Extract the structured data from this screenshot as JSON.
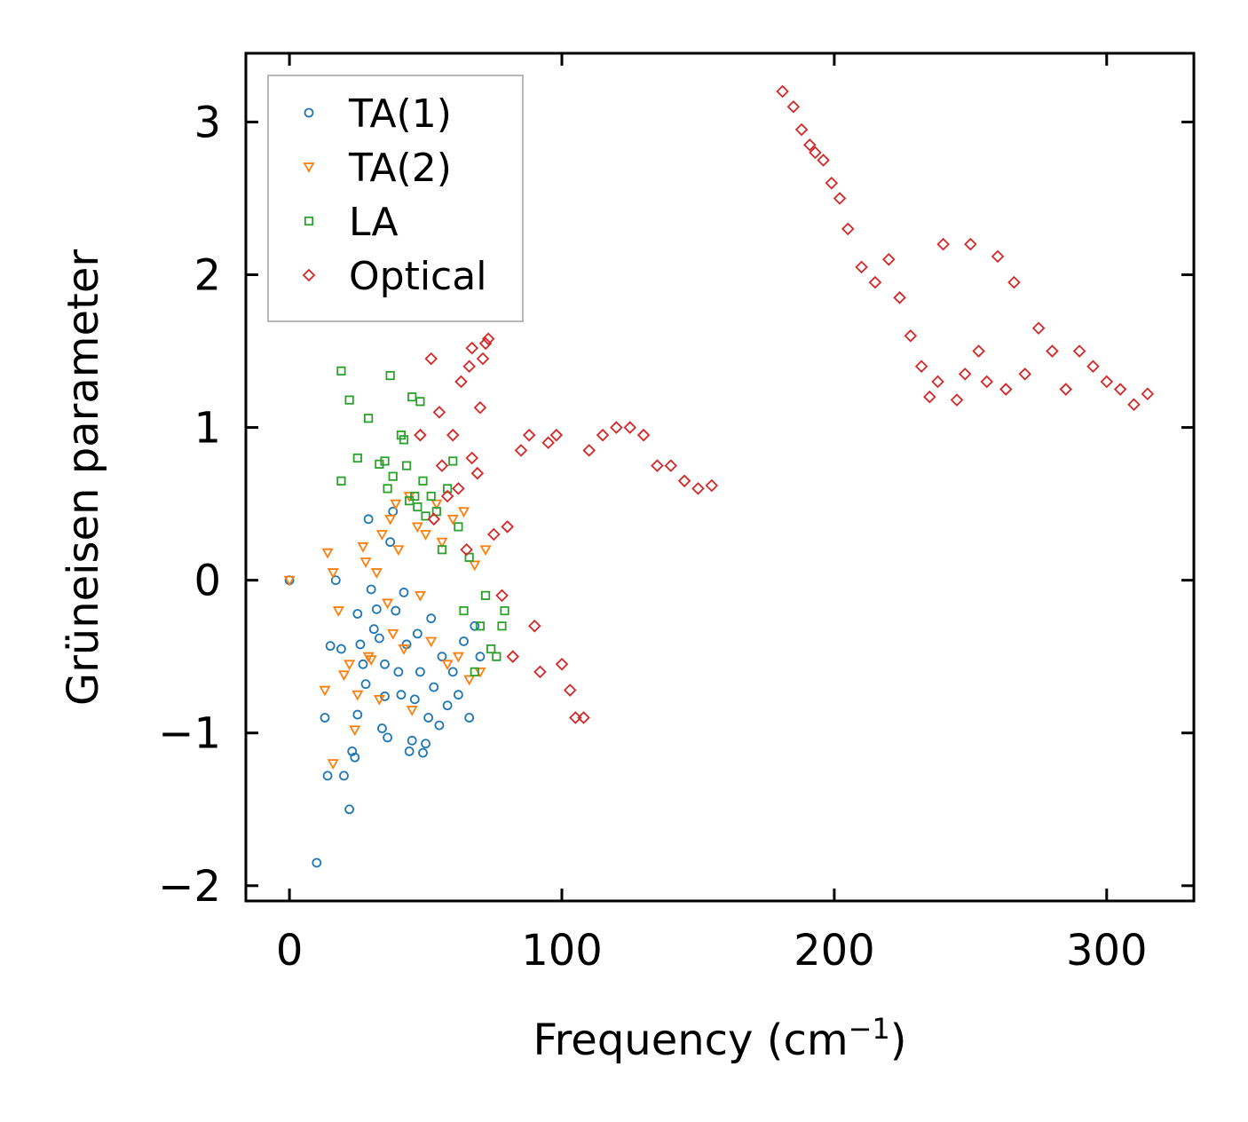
{
  "chart_data": {
    "type": "scatter",
    "title": "",
    "xlabel": "Frequency (cm",
    "xlabel_sup": "−1",
    "xlabel_suffix": ")",
    "ylabel": "Grüneisen parameter",
    "xlim": [
      -16,
      332
    ],
    "ylim": [
      -2.1,
      3.45
    ],
    "x_ticks": [
      0,
      100,
      200,
      300
    ],
    "x_tick_labels": [
      "0",
      "100",
      "200",
      "300"
    ],
    "y_ticks": [
      -2,
      -1,
      0,
      1,
      2,
      3
    ],
    "y_tick_labels": [
      "−2",
      "−1",
      "0",
      "1",
      "2",
      "3"
    ],
    "grid": false,
    "legend_position": "top-left",
    "series": [
      {
        "name": "TA(1)",
        "marker": "circle",
        "color": "#1f77b4",
        "points": [
          [
            0,
            0
          ],
          [
            10,
            -1.85
          ],
          [
            13,
            -0.9
          ],
          [
            14,
            -1.28
          ],
          [
            15,
            -0.43
          ],
          [
            17,
            0
          ],
          [
            19,
            -0.45
          ],
          [
            20,
            -1.28
          ],
          [
            22,
            -1.5
          ],
          [
            23,
            -1.12
          ],
          [
            24,
            -1.16
          ],
          [
            25,
            -0.22
          ],
          [
            25,
            -0.88
          ],
          [
            26,
            -0.42
          ],
          [
            27,
            -0.55
          ],
          [
            28,
            -0.68
          ],
          [
            29,
            0.4
          ],
          [
            30,
            -0.06
          ],
          [
            31,
            -0.32
          ],
          [
            32,
            -0.19
          ],
          [
            33,
            -0.38
          ],
          [
            34,
            -0.97
          ],
          [
            35,
            -0.55
          ],
          [
            35,
            -0.76
          ],
          [
            36,
            -1.03
          ],
          [
            37,
            0.25
          ],
          [
            38,
            0.45
          ],
          [
            39,
            -0.2
          ],
          [
            40,
            -0.6
          ],
          [
            41,
            -0.75
          ],
          [
            42,
            -0.08
          ],
          [
            43,
            -0.42
          ],
          [
            44,
            -1.12
          ],
          [
            45,
            -1.05
          ],
          [
            46,
            -0.78
          ],
          [
            47,
            -0.35
          ],
          [
            48,
            -0.6
          ],
          [
            49,
            -1.13
          ],
          [
            50,
            -1.07
          ],
          [
            51,
            -0.9
          ],
          [
            52,
            -0.25
          ],
          [
            53,
            -0.7
          ],
          [
            55,
            -0.95
          ],
          [
            56,
            -0.5
          ],
          [
            58,
            -0.82
          ],
          [
            60,
            -0.6
          ],
          [
            62,
            -0.75
          ],
          [
            64,
            -0.4
          ],
          [
            66,
            -0.9
          ],
          [
            68,
            -0.3
          ],
          [
            70,
            -0.5
          ]
        ]
      },
      {
        "name": "TA(2)",
        "marker": "triangle-down",
        "color": "#ff7f0e",
        "points": [
          [
            0,
            0
          ],
          [
            13,
            -0.72
          ],
          [
            14,
            0.18
          ],
          [
            16,
            -1.2
          ],
          [
            16,
            0.05
          ],
          [
            18,
            -0.2
          ],
          [
            20,
            -0.62
          ],
          [
            22,
            -0.55
          ],
          [
            24,
            -0.98
          ],
          [
            25,
            -0.75
          ],
          [
            27,
            0.22
          ],
          [
            28,
            0.12
          ],
          [
            29,
            -0.5
          ],
          [
            30,
            -0.52
          ],
          [
            32,
            0.05
          ],
          [
            33,
            -0.78
          ],
          [
            34,
            0.3
          ],
          [
            36,
            -0.15
          ],
          [
            37,
            0.4
          ],
          [
            38,
            -0.35
          ],
          [
            39,
            0.5
          ],
          [
            40,
            0.2
          ],
          [
            42,
            -0.45
          ],
          [
            44,
            0.55
          ],
          [
            45,
            -0.85
          ],
          [
            47,
            0.35
          ],
          [
            48,
            -0.1
          ],
          [
            50,
            0.3
          ],
          [
            52,
            -0.4
          ],
          [
            54,
            0.5
          ],
          [
            56,
            0.25
          ],
          [
            58,
            -0.55
          ],
          [
            60,
            0.4
          ],
          [
            62,
            -0.5
          ],
          [
            64,
            0.45
          ],
          [
            66,
            -0.65
          ],
          [
            68,
            0.1
          ],
          [
            70,
            -0.6
          ],
          [
            72,
            0.2
          ]
        ]
      },
      {
        "name": "LA",
        "marker": "square",
        "color": "#2ca02c",
        "points": [
          [
            19,
            1.37
          ],
          [
            19,
            0.65
          ],
          [
            22,
            1.18
          ],
          [
            25,
            0.8
          ],
          [
            29,
            1.06
          ],
          [
            33,
            0.76
          ],
          [
            35,
            0.78
          ],
          [
            36,
            0.6
          ],
          [
            37,
            1.34
          ],
          [
            38,
            0.68
          ],
          [
            41,
            0.95
          ],
          [
            42,
            0.92
          ],
          [
            43,
            0.75
          ],
          [
            44,
            0.52
          ],
          [
            45,
            1.2
          ],
          [
            46,
            0.55
          ],
          [
            47,
            0.48
          ],
          [
            48,
            1.17
          ],
          [
            49,
            0.65
          ],
          [
            50,
            0.42
          ],
          [
            52,
            0.55
          ],
          [
            54,
            0.45
          ],
          [
            56,
            0.2
          ],
          [
            58,
            0.6
          ],
          [
            60,
            0.78
          ],
          [
            62,
            0.35
          ],
          [
            64,
            -0.2
          ],
          [
            66,
            0.15
          ],
          [
            68,
            -0.6
          ],
          [
            70,
            -0.3
          ],
          [
            72,
            -0.1
          ],
          [
            74,
            -0.45
          ],
          [
            76,
            -0.5
          ],
          [
            78,
            -0.3
          ],
          [
            79,
            -0.2
          ]
        ]
      },
      {
        "name": "Optical",
        "marker": "diamond",
        "color": "#d62728",
        "points": [
          [
            48,
            0.95
          ],
          [
            52,
            1.45
          ],
          [
            53,
            0.4
          ],
          [
            55,
            1.1
          ],
          [
            56,
            0.75
          ],
          [
            58,
            0.55
          ],
          [
            60,
            0.95
          ],
          [
            62,
            0.6
          ],
          [
            63,
            1.3
          ],
          [
            65,
            0.2
          ],
          [
            66,
            1.4
          ],
          [
            67,
            0.8
          ],
          [
            67,
            1.52
          ],
          [
            69,
            0.7
          ],
          [
            70,
            1.13
          ],
          [
            71,
            1.45
          ],
          [
            72,
            1.55
          ],
          [
            73,
            1.58
          ],
          [
            75,
            0.3
          ],
          [
            78,
            -0.1
          ],
          [
            80,
            0.35
          ],
          [
            82,
            -0.5
          ],
          [
            85,
            0.85
          ],
          [
            88,
            0.95
          ],
          [
            90,
            -0.3
          ],
          [
            92,
            -0.6
          ],
          [
            95,
            0.9
          ],
          [
            98,
            0.95
          ],
          [
            100,
            -0.55
          ],
          [
            103,
            -0.72
          ],
          [
            105,
            -0.9
          ],
          [
            108,
            -0.9
          ],
          [
            110,
            0.85
          ],
          [
            115,
            0.95
          ],
          [
            120,
            1.0
          ],
          [
            125,
            1.0
          ],
          [
            130,
            0.95
          ],
          [
            135,
            0.75
          ],
          [
            140,
            0.75
          ],
          [
            145,
            0.65
          ],
          [
            150,
            0.6
          ],
          [
            155,
            0.62
          ],
          [
            181,
            3.2
          ],
          [
            185,
            3.1
          ],
          [
            188,
            2.95
          ],
          [
            191,
            2.85
          ],
          [
            193,
            2.8
          ],
          [
            196,
            2.75
          ],
          [
            199,
            2.6
          ],
          [
            202,
            2.5
          ],
          [
            205,
            2.3
          ],
          [
            210,
            2.05
          ],
          [
            215,
            1.95
          ],
          [
            220,
            2.1
          ],
          [
            224,
            1.85
          ],
          [
            228,
            1.6
          ],
          [
            232,
            1.4
          ],
          [
            235,
            1.2
          ],
          [
            238,
            1.3
          ],
          [
            240,
            2.2
          ],
          [
            245,
            1.18
          ],
          [
            248,
            1.35
          ],
          [
            250,
            2.2
          ],
          [
            253,
            1.5
          ],
          [
            256,
            1.3
          ],
          [
            260,
            2.12
          ],
          [
            263,
            1.25
          ],
          [
            266,
            1.95
          ],
          [
            270,
            1.35
          ],
          [
            275,
            1.65
          ],
          [
            280,
            1.5
          ],
          [
            285,
            1.25
          ],
          [
            290,
            1.5
          ],
          [
            295,
            1.4
          ],
          [
            300,
            1.3
          ],
          [
            305,
            1.25
          ],
          [
            310,
            1.15
          ],
          [
            315,
            1.22
          ]
        ]
      }
    ]
  }
}
